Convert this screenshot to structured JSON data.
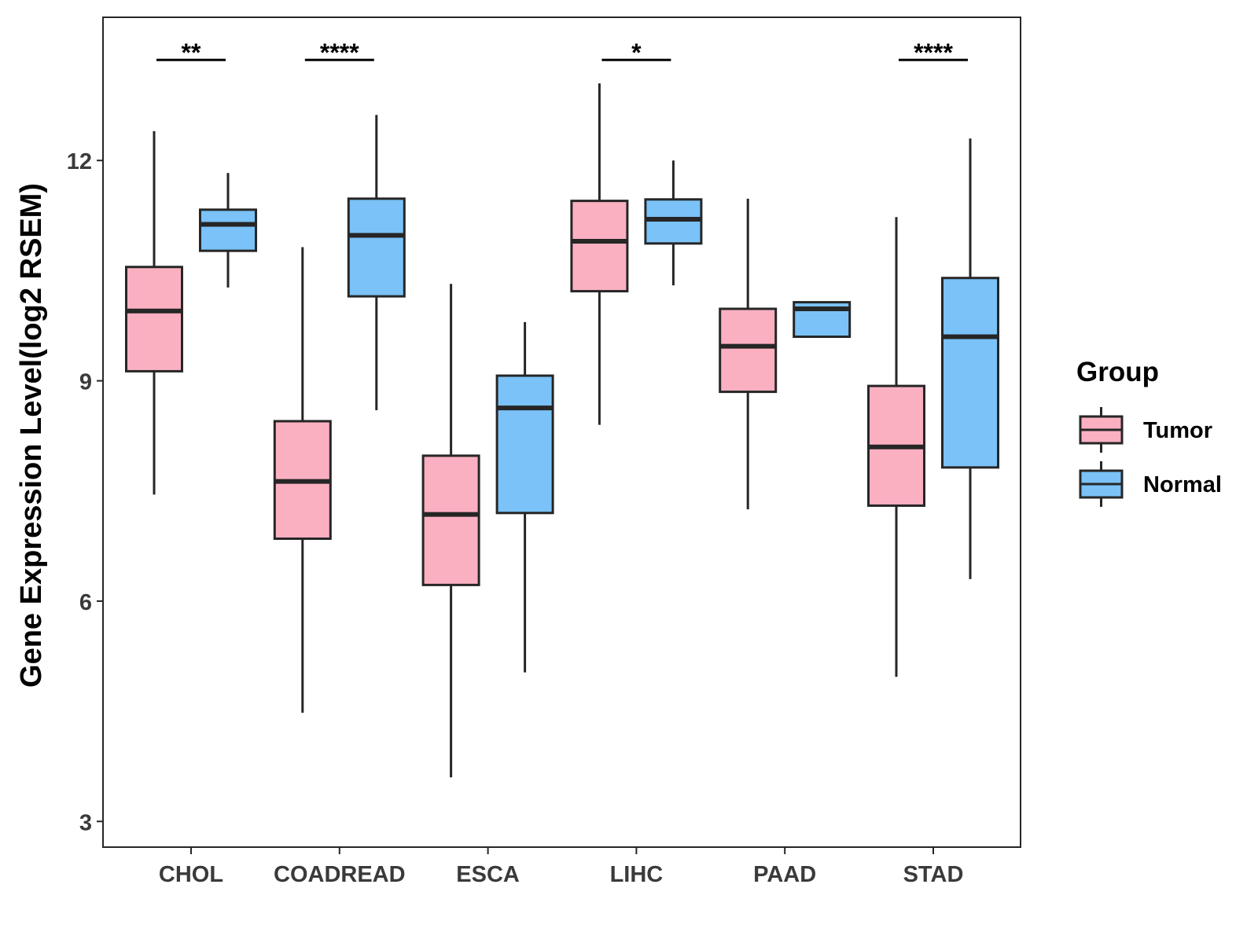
{
  "chart_data": {
    "type": "boxplot",
    "title": "",
    "xlabel": "",
    "ylabel": "Gene Expression Level(log2 RSEM)",
    "ylim": [
      2.65,
      13.95
    ],
    "yticks": [
      3,
      6,
      9,
      12
    ],
    "ytick_labels": [
      "3",
      "6",
      "9",
      "12"
    ],
    "grid": false,
    "legend_position": "right",
    "legend": {
      "title": "Group",
      "entries": [
        {
          "name": "Tumor",
          "color": "#FBB0C2"
        },
        {
          "name": "Normal",
          "color": "#7AC2F7"
        }
      ]
    },
    "categories": [
      "CHOL",
      "COADREAD",
      "ESCA",
      "LIHC",
      "PAAD",
      "STAD"
    ],
    "series": [
      {
        "name": "Tumor",
        "color": "#FBB0C2",
        "boxes": [
          {
            "category": "CHOL",
            "min": 7.45,
            "q1": 9.13,
            "median": 9.95,
            "q3": 10.55,
            "max": 12.4
          },
          {
            "category": "COADREAD",
            "min": 4.48,
            "q1": 6.85,
            "median": 7.63,
            "q3": 8.45,
            "max": 10.82
          },
          {
            "category": "ESCA",
            "min": 3.6,
            "q1": 6.22,
            "median": 7.18,
            "q3": 7.98,
            "max": 10.32
          },
          {
            "category": "LIHC",
            "min": 8.4,
            "q1": 10.22,
            "median": 10.9,
            "q3": 11.45,
            "max": 13.05
          },
          {
            "category": "PAAD",
            "min": 7.25,
            "q1": 8.85,
            "median": 9.47,
            "q3": 9.98,
            "max": 11.48
          },
          {
            "category": "STAD",
            "min": 4.97,
            "q1": 7.3,
            "median": 8.1,
            "q3": 8.93,
            "max": 11.23
          }
        ]
      },
      {
        "name": "Normal",
        "color": "#7AC2F7",
        "boxes": [
          {
            "category": "CHOL",
            "min": 10.27,
            "q1": 10.77,
            "median": 11.13,
            "q3": 11.33,
            "max": 11.83
          },
          {
            "category": "COADREAD",
            "min": 8.6,
            "q1": 10.15,
            "median": 10.98,
            "q3": 11.48,
            "max": 12.62
          },
          {
            "category": "ESCA",
            "min": 5.03,
            "q1": 7.2,
            "median": 8.63,
            "q3": 9.07,
            "max": 9.8
          },
          {
            "category": "LIHC",
            "min": 10.3,
            "q1": 10.87,
            "median": 11.2,
            "q3": 11.47,
            "max": 12.0
          },
          {
            "category": "PAAD",
            "min": 9.6,
            "q1": 9.6,
            "median": 9.98,
            "q3": 10.07,
            "max": 10.07
          },
          {
            "category": "STAD",
            "min": 6.3,
            "q1": 7.82,
            "median": 9.6,
            "q3": 10.4,
            "max": 12.3
          }
        ]
      }
    ],
    "significance": [
      {
        "category": "CHOL",
        "label": "**",
        "y": 13.37
      },
      {
        "category": "COADREAD",
        "label": "****",
        "y": 13.37
      },
      {
        "category": "LIHC",
        "label": "*",
        "y": 13.37
      },
      {
        "category": "STAD",
        "label": "****",
        "y": 13.37
      }
    ]
  }
}
